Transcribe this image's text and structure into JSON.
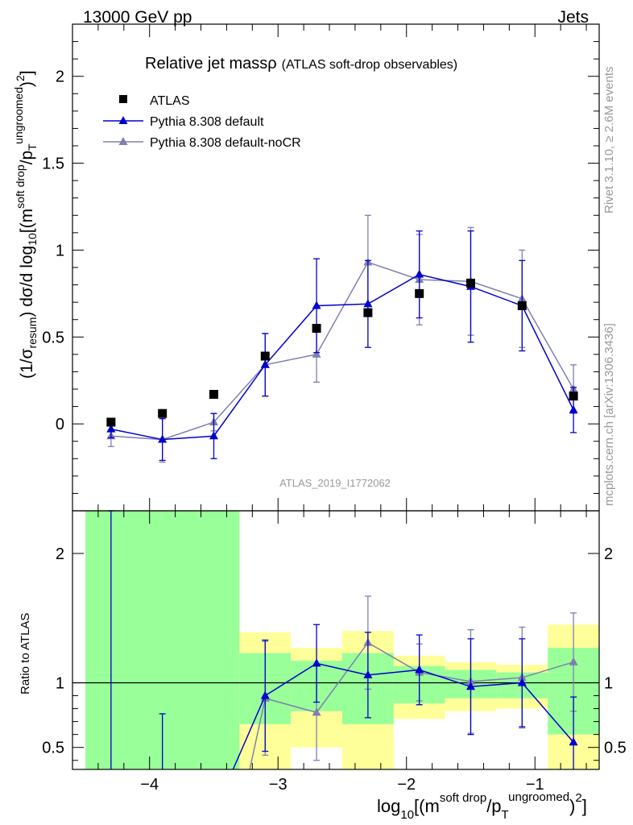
{
  "header": {
    "left": "13000 GeV pp",
    "right": "Jets"
  },
  "side_texts": {
    "rivet": "Rivet 3.1.10, ≥ 2.6M events",
    "mcplots": "mcplots.cern.ch [arXiv:1306.3436]"
  },
  "plot_title": {
    "main": "Relative jet massρ",
    "sub": "(ATLAS soft-drop observables)"
  },
  "analysis_label": "ATLAS_2019_I1772062",
  "axes": {
    "main_ylabel": {
      "a": "(1/σ",
      "b": "resum",
      "c": ") dσ/d log",
      "d": "10",
      "e": "[(m",
      "f": "soft drop",
      "g": "/p",
      "h": "T",
      "i": "ungroomed",
      "j": ")",
      "k": "2",
      "l": "]"
    },
    "ratio_ylabel": "Ratio to ATLAS",
    "xlabel": {
      "a": "log",
      "b": "10",
      "c": "[(m",
      "d": "soft drop",
      "e": "/p",
      "f": "T",
      "g": "ungroomed",
      "h": ")",
      "i": "2",
      "j": "]"
    }
  },
  "colors": {
    "data": "#000000",
    "default": "#0000cc",
    "noCR": "#7f7fb0",
    "band_green": "#99ff99",
    "band_yellow": "#ffff99"
  },
  "chart_data": [
    {
      "type": "scatter",
      "panel": "main",
      "xlim": [
        -4.6,
        -0.5
      ],
      "ylim": [
        -0.5,
        2.3
      ],
      "xticks": [
        -4,
        -3,
        -2,
        -1
      ],
      "yticks": [
        0,
        0.5,
        1,
        1.5,
        2
      ],
      "ytick_labels": [
        "0",
        "0.5",
        "1",
        "1.5",
        "2"
      ],
      "x": [
        -4.3,
        -3.9,
        -3.5,
        -3.1,
        -2.7,
        -2.3,
        -1.9,
        -1.5,
        -1.1,
        -0.7
      ],
      "series": [
        {
          "name": "ATLAS",
          "marker": "square",
          "color": "#000000",
          "values": [
            0.01,
            0.06,
            0.17,
            0.39,
            0.55,
            0.64,
            0.75,
            0.81,
            0.68,
            0.16
          ],
          "errors": [
            0.01,
            0.01,
            0.02,
            0.03,
            0.04,
            0.04,
            0.04,
            0.04,
            0.04,
            0.03
          ]
        },
        {
          "name": "Pythia 8.308 default",
          "marker": "triangle",
          "color": "#0000cc",
          "values": [
            -0.03,
            -0.09,
            -0.07,
            0.34,
            0.68,
            0.69,
            0.86,
            0.79,
            0.68,
            0.08
          ],
          "errors": [
            0.05,
            0.12,
            0.13,
            0.18,
            0.27,
            0.25,
            0.25,
            0.32,
            0.26,
            0.13
          ]
        },
        {
          "name": "Pythia 8.308 default-noCR",
          "marker": "triangle",
          "color": "#7f7fb0",
          "values": [
            -0.07,
            -0.09,
            0.01,
            0.34,
            0.4,
            0.93,
            0.83,
            0.82,
            0.72,
            0.2
          ],
          "errors": [
            0.06,
            0.13,
            0.05,
            0.18,
            0.16,
            0.27,
            0.26,
            0.31,
            0.28,
            0.14
          ]
        }
      ]
    },
    {
      "type": "scatter",
      "panel": "ratio",
      "xlim": [
        -4.6,
        -0.5
      ],
      "ylim": [
        0.33,
        2.33
      ],
      "xticks": [
        -4,
        -3,
        -2,
        -1
      ],
      "xtick_labels": [
        "−4",
        "−3",
        "−2",
        "−1"
      ],
      "yticks": [
        0.5,
        1,
        2
      ],
      "ytick_labels": [
        "0.5",
        "1",
        "2"
      ],
      "bins": [
        {
          "lo": -4.5,
          "hi": -3.3,
          "green": [
            0.33,
            2.33
          ],
          "yellow": [
            0.33,
            2.33
          ]
        },
        {
          "lo": -3.3,
          "hi": -2.9,
          "green": [
            0.68,
            1.23
          ],
          "yellow": [
            0.33,
            1.39
          ]
        },
        {
          "lo": -2.9,
          "hi": -2.5,
          "green": [
            0.78,
            1.17
          ],
          "yellow": [
            0.5,
            1.27
          ]
        },
        {
          "lo": -2.5,
          "hi": -2.1,
          "green": [
            0.68,
            1.23
          ],
          "yellow": [
            0.33,
            1.4
          ]
        },
        {
          "lo": -2.1,
          "hi": -1.7,
          "green": [
            0.84,
            1.13
          ],
          "yellow": [
            0.72,
            1.21
          ]
        },
        {
          "lo": -1.7,
          "hi": -1.3,
          "green": [
            0.88,
            1.1
          ],
          "yellow": [
            0.78,
            1.16
          ]
        },
        {
          "lo": -1.3,
          "hi": -0.9,
          "green": [
            0.88,
            1.08
          ],
          "yellow": [
            0.8,
            1.14
          ]
        },
        {
          "lo": -0.9,
          "hi": -0.5,
          "green": [
            0.6,
            1.27
          ],
          "yellow": [
            0.33,
            1.45
          ]
        }
      ],
      "x": [
        -4.3,
        -3.9,
        -3.5,
        -3.1,
        -2.7,
        -2.3,
        -1.9,
        -1.5,
        -1.1,
        -0.7
      ],
      "series": [
        {
          "name": "Pythia 8.308 default",
          "color": "#0000cc",
          "values": [
            null,
            null,
            null,
            0.9,
            1.15,
            1.06,
            1.1,
            0.97,
            1.0,
            0.54
          ],
          "errors": [
            null,
            null,
            null,
            0.43,
            0.3,
            0.33,
            0.27,
            0.37,
            0.34,
            0.35
          ]
        },
        {
          "name": "Pythia 8.308 default-noCR",
          "color": "#7f7fb0",
          "values": [
            null,
            null,
            null,
            0.88,
            0.77,
            1.31,
            1.08,
            1.01,
            1.04,
            1.16
          ],
          "errors": [
            null,
            null,
            null,
            0.44,
            0.37,
            0.36,
            0.22,
            0.4,
            0.39,
            0.38
          ]
        }
      ],
      "overflow_bars": [
        {
          "x": -4.3,
          "color": "#0000cc",
          "top": 2.33
        },
        {
          "x": -3.9,
          "color": "#0000cc",
          "top": 0.76
        }
      ]
    }
  ]
}
